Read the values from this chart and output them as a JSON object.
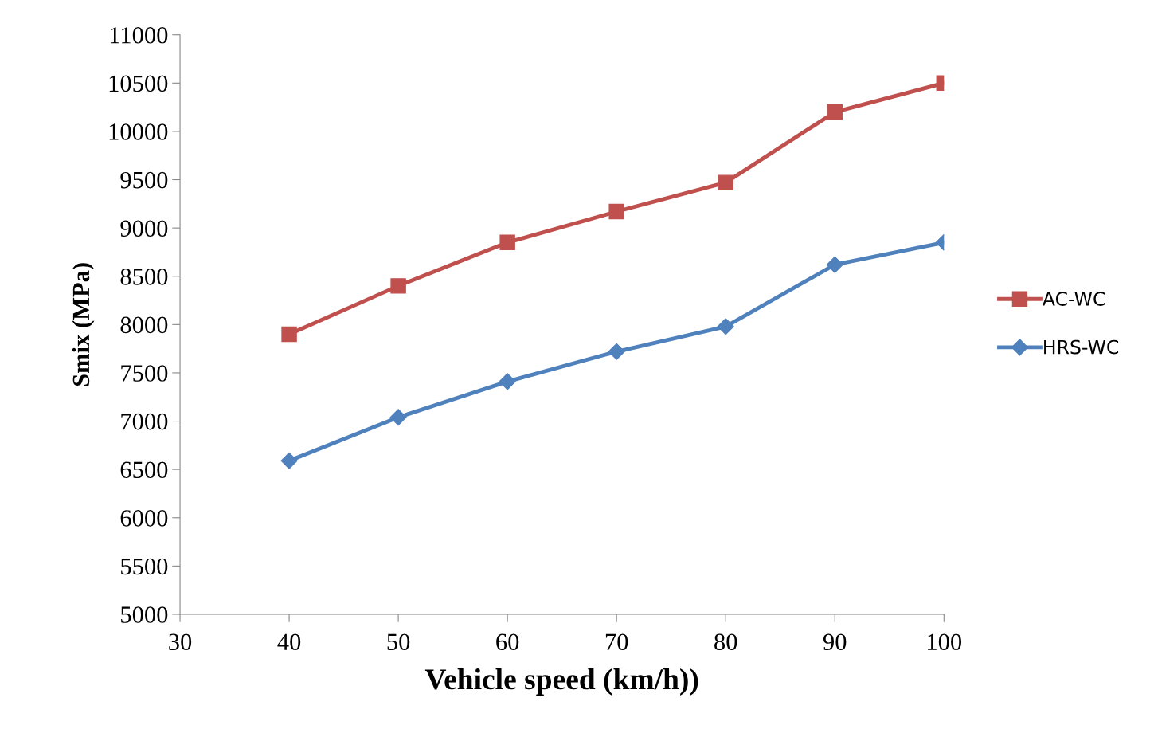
{
  "chart_data": {
    "type": "line",
    "xlabel": "Vehicle speed (km/h))",
    "ylabel": "Smix (MPa)",
    "x": [
      40,
      50,
      60,
      70,
      80,
      90,
      100
    ],
    "series": [
      {
        "name": "AC-WC",
        "color": "#c0504d",
        "marker": "square",
        "values": [
          7900,
          8400,
          8850,
          9170,
          9470,
          10200,
          10500
        ]
      },
      {
        "name": "HRS-WC",
        "color": "#4f81bd",
        "marker": "diamond",
        "values": [
          6590,
          7040,
          7410,
          7720,
          7980,
          8620,
          8850
        ]
      }
    ],
    "xlim": [
      30,
      100
    ],
    "xticks": [
      30,
      40,
      50,
      60,
      70,
      80,
      90,
      100
    ],
    "ylim": [
      5000,
      11000
    ],
    "yticks": [
      5000,
      5500,
      6000,
      6500,
      7000,
      7500,
      8000,
      8500,
      9000,
      9500,
      10000,
      10500,
      11000
    ],
    "grid": false,
    "legend": "right",
    "line_style": "solid"
  }
}
